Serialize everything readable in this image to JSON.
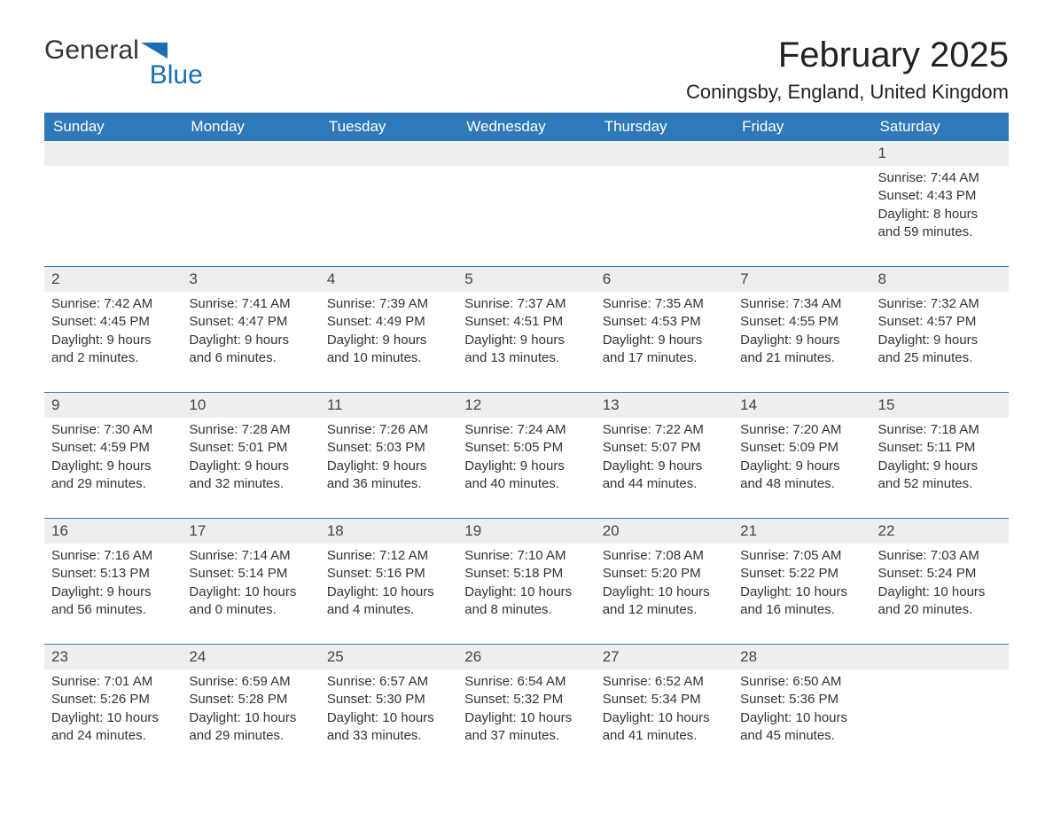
{
  "brand": {
    "general": "General",
    "blue": "Blue"
  },
  "title": "February 2025",
  "location": "Coningsby, England, United Kingdom",
  "colors": {
    "accent": "#2f79b9",
    "header_bg": "#2f79b9",
    "header_text": "#ffffff",
    "daynum_bg": "#eeeeee",
    "text": "#333333"
  },
  "day_headers": [
    "Sunday",
    "Monday",
    "Tuesday",
    "Wednesday",
    "Thursday",
    "Friday",
    "Saturday"
  ],
  "weeks": [
    [
      null,
      null,
      null,
      null,
      null,
      null,
      {
        "n": "1",
        "sunrise": "Sunrise: 7:44 AM",
        "sunset": "Sunset: 4:43 PM",
        "daylight": "Daylight: 8 hours and 59 minutes."
      }
    ],
    [
      {
        "n": "2",
        "sunrise": "Sunrise: 7:42 AM",
        "sunset": "Sunset: 4:45 PM",
        "daylight": "Daylight: 9 hours and 2 minutes."
      },
      {
        "n": "3",
        "sunrise": "Sunrise: 7:41 AM",
        "sunset": "Sunset: 4:47 PM",
        "daylight": "Daylight: 9 hours and 6 minutes."
      },
      {
        "n": "4",
        "sunrise": "Sunrise: 7:39 AM",
        "sunset": "Sunset: 4:49 PM",
        "daylight": "Daylight: 9 hours and 10 minutes."
      },
      {
        "n": "5",
        "sunrise": "Sunrise: 7:37 AM",
        "sunset": "Sunset: 4:51 PM",
        "daylight": "Daylight: 9 hours and 13 minutes."
      },
      {
        "n": "6",
        "sunrise": "Sunrise: 7:35 AM",
        "sunset": "Sunset: 4:53 PM",
        "daylight": "Daylight: 9 hours and 17 minutes."
      },
      {
        "n": "7",
        "sunrise": "Sunrise: 7:34 AM",
        "sunset": "Sunset: 4:55 PM",
        "daylight": "Daylight: 9 hours and 21 minutes."
      },
      {
        "n": "8",
        "sunrise": "Sunrise: 7:32 AM",
        "sunset": "Sunset: 4:57 PM",
        "daylight": "Daylight: 9 hours and 25 minutes."
      }
    ],
    [
      {
        "n": "9",
        "sunrise": "Sunrise: 7:30 AM",
        "sunset": "Sunset: 4:59 PM",
        "daylight": "Daylight: 9 hours and 29 minutes."
      },
      {
        "n": "10",
        "sunrise": "Sunrise: 7:28 AM",
        "sunset": "Sunset: 5:01 PM",
        "daylight": "Daylight: 9 hours and 32 minutes."
      },
      {
        "n": "11",
        "sunrise": "Sunrise: 7:26 AM",
        "sunset": "Sunset: 5:03 PM",
        "daylight": "Daylight: 9 hours and 36 minutes."
      },
      {
        "n": "12",
        "sunrise": "Sunrise: 7:24 AM",
        "sunset": "Sunset: 5:05 PM",
        "daylight": "Daylight: 9 hours and 40 minutes."
      },
      {
        "n": "13",
        "sunrise": "Sunrise: 7:22 AM",
        "sunset": "Sunset: 5:07 PM",
        "daylight": "Daylight: 9 hours and 44 minutes."
      },
      {
        "n": "14",
        "sunrise": "Sunrise: 7:20 AM",
        "sunset": "Sunset: 5:09 PM",
        "daylight": "Daylight: 9 hours and 48 minutes."
      },
      {
        "n": "15",
        "sunrise": "Sunrise: 7:18 AM",
        "sunset": "Sunset: 5:11 PM",
        "daylight": "Daylight: 9 hours and 52 minutes."
      }
    ],
    [
      {
        "n": "16",
        "sunrise": "Sunrise: 7:16 AM",
        "sunset": "Sunset: 5:13 PM",
        "daylight": "Daylight: 9 hours and 56 minutes."
      },
      {
        "n": "17",
        "sunrise": "Sunrise: 7:14 AM",
        "sunset": "Sunset: 5:14 PM",
        "daylight": "Daylight: 10 hours and 0 minutes."
      },
      {
        "n": "18",
        "sunrise": "Sunrise: 7:12 AM",
        "sunset": "Sunset: 5:16 PM",
        "daylight": "Daylight: 10 hours and 4 minutes."
      },
      {
        "n": "19",
        "sunrise": "Sunrise: 7:10 AM",
        "sunset": "Sunset: 5:18 PM",
        "daylight": "Daylight: 10 hours and 8 minutes."
      },
      {
        "n": "20",
        "sunrise": "Sunrise: 7:08 AM",
        "sunset": "Sunset: 5:20 PM",
        "daylight": "Daylight: 10 hours and 12 minutes."
      },
      {
        "n": "21",
        "sunrise": "Sunrise: 7:05 AM",
        "sunset": "Sunset: 5:22 PM",
        "daylight": "Daylight: 10 hours and 16 minutes."
      },
      {
        "n": "22",
        "sunrise": "Sunrise: 7:03 AM",
        "sunset": "Sunset: 5:24 PM",
        "daylight": "Daylight: 10 hours and 20 minutes."
      }
    ],
    [
      {
        "n": "23",
        "sunrise": "Sunrise: 7:01 AM",
        "sunset": "Sunset: 5:26 PM",
        "daylight": "Daylight: 10 hours and 24 minutes."
      },
      {
        "n": "24",
        "sunrise": "Sunrise: 6:59 AM",
        "sunset": "Sunset: 5:28 PM",
        "daylight": "Daylight: 10 hours and 29 minutes."
      },
      {
        "n": "25",
        "sunrise": "Sunrise: 6:57 AM",
        "sunset": "Sunset: 5:30 PM",
        "daylight": "Daylight: 10 hours and 33 minutes."
      },
      {
        "n": "26",
        "sunrise": "Sunrise: 6:54 AM",
        "sunset": "Sunset: 5:32 PM",
        "daylight": "Daylight: 10 hours and 37 minutes."
      },
      {
        "n": "27",
        "sunrise": "Sunrise: 6:52 AM",
        "sunset": "Sunset: 5:34 PM",
        "daylight": "Daylight: 10 hours and 41 minutes."
      },
      {
        "n": "28",
        "sunrise": "Sunrise: 6:50 AM",
        "sunset": "Sunset: 5:36 PM",
        "daylight": "Daylight: 10 hours and 45 minutes."
      },
      null
    ]
  ]
}
